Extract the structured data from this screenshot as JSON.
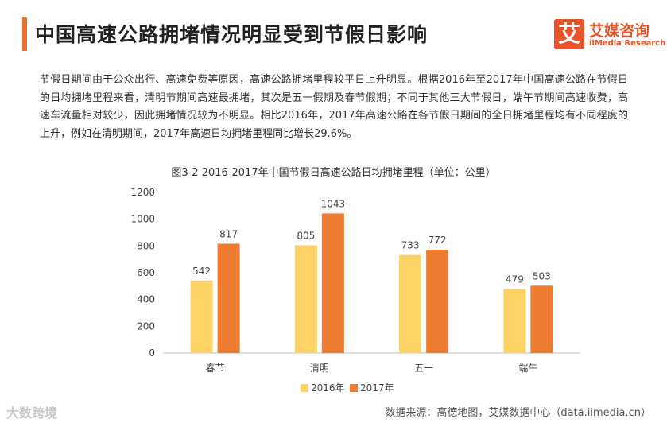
{
  "header": {
    "title": "中国高速公路拥堵情况明显受到节假日影响"
  },
  "logo": {
    "mark": "艾",
    "name_cn": "艾媒咨询",
    "name_en": "iiMedia Research",
    "brand_color": "#e8542a"
  },
  "body_text": "节假日期间由于公众出行、高速免费等原因，高速公路拥堵里程较平日上升明显。根据2016年至2017年中国高速公路在节假日的日均拥堵里程来看，清明节期间高速最拥堵，其次是五一假期及春节假期；不同于其他三大节假日，端午节期间高速收费，高速车流量相对较少，因此拥堵情况较为不明显。相比2016年，2017年高速公路在各节假日期间的全日拥堵里程均有不同程度的上升，例如在清明期间，2017年高速日均拥堵里程同比增长29.6%。",
  "chart_data": {
    "type": "bar",
    "title": "图3-2 2016-2017年中国节假日高速公路日均拥堵里程（单位：公里）",
    "categories": [
      "春节",
      "清明",
      "五一",
      "端午"
    ],
    "series": [
      {
        "name": "2016年",
        "values": [
          542,
          805,
          733,
          479
        ],
        "color": "#fdd266"
      },
      {
        "name": "2017年",
        "values": [
          817,
          1043,
          772,
          503
        ],
        "color": "#ec7d31"
      }
    ],
    "ylim": [
      0,
      1200
    ],
    "yticks": [
      0,
      200,
      400,
      600,
      800,
      1000,
      1200
    ],
    "grid": false,
    "legend": "bottom-center"
  },
  "footer": {
    "watermark": "大数跨境",
    "source": "数据来源：高德地图，艾媒数据中心（data.iimedia.cn）"
  }
}
